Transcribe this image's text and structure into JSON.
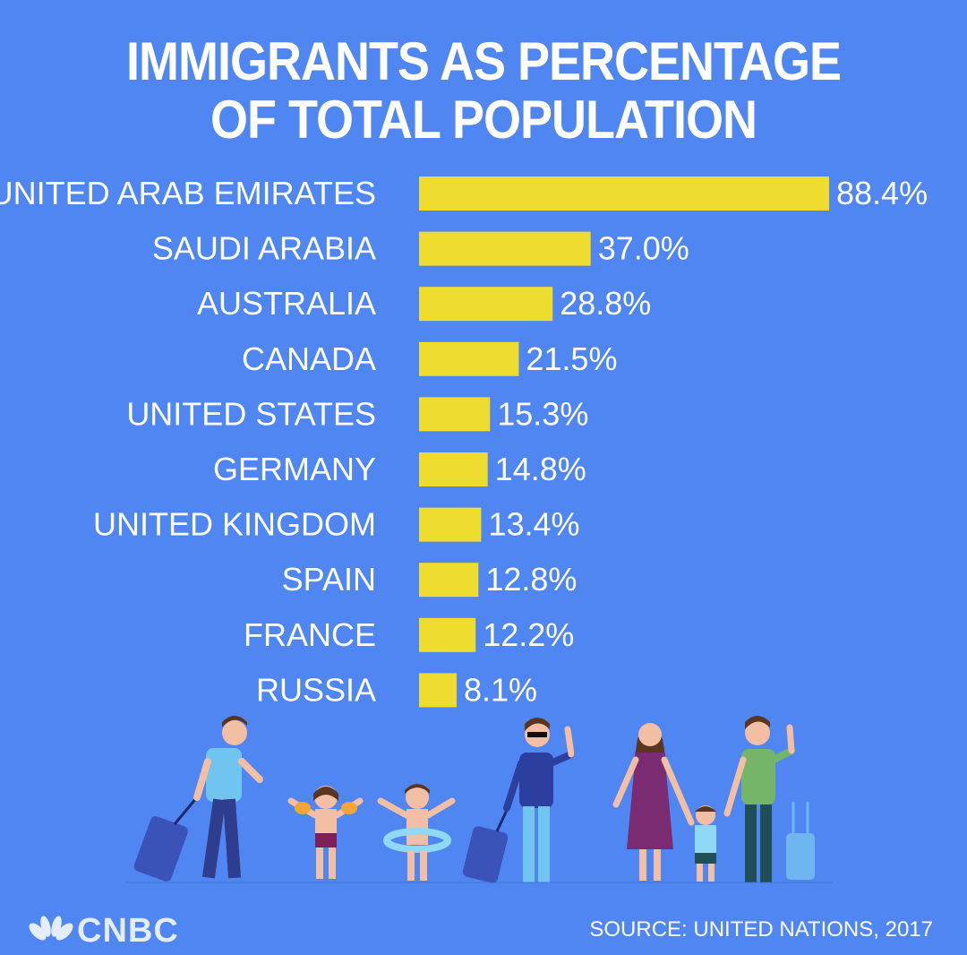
{
  "chart_data": {
    "type": "bar",
    "orientation": "horizontal",
    "title_lines": [
      "IMMIGRANTS AS PERCENTAGE",
      "OF TOTAL POPULATION"
    ],
    "categories": [
      "UNITED ARAB EMIRATES",
      "SAUDI ARABIA",
      "AUSTRALIA",
      "CANADA",
      "UNITED STATES",
      "GERMANY",
      "UNITED KINGDOM",
      "SPAIN",
      "FRANCE",
      "RUSSIA"
    ],
    "values": [
      88.4,
      37.0,
      28.8,
      21.5,
      15.3,
      14.8,
      13.4,
      12.8,
      12.2,
      8.1
    ],
    "value_labels": [
      "88.4%",
      "37.0%",
      "28.8%",
      "21.5%",
      "15.3%",
      "14.8%",
      "13.4%",
      "12.8%",
      "12.2%",
      "8.1%"
    ],
    "xlim": [
      0,
      88.4
    ],
    "grid": false,
    "bar_color": "#EEDD2F",
    "background_color": "#4F86F2"
  },
  "footer": {
    "brand": "CNBC",
    "source": "SOURCE: UNITED NATIONS, 2017"
  },
  "illustration": {
    "icon": "travelers-illustration"
  }
}
